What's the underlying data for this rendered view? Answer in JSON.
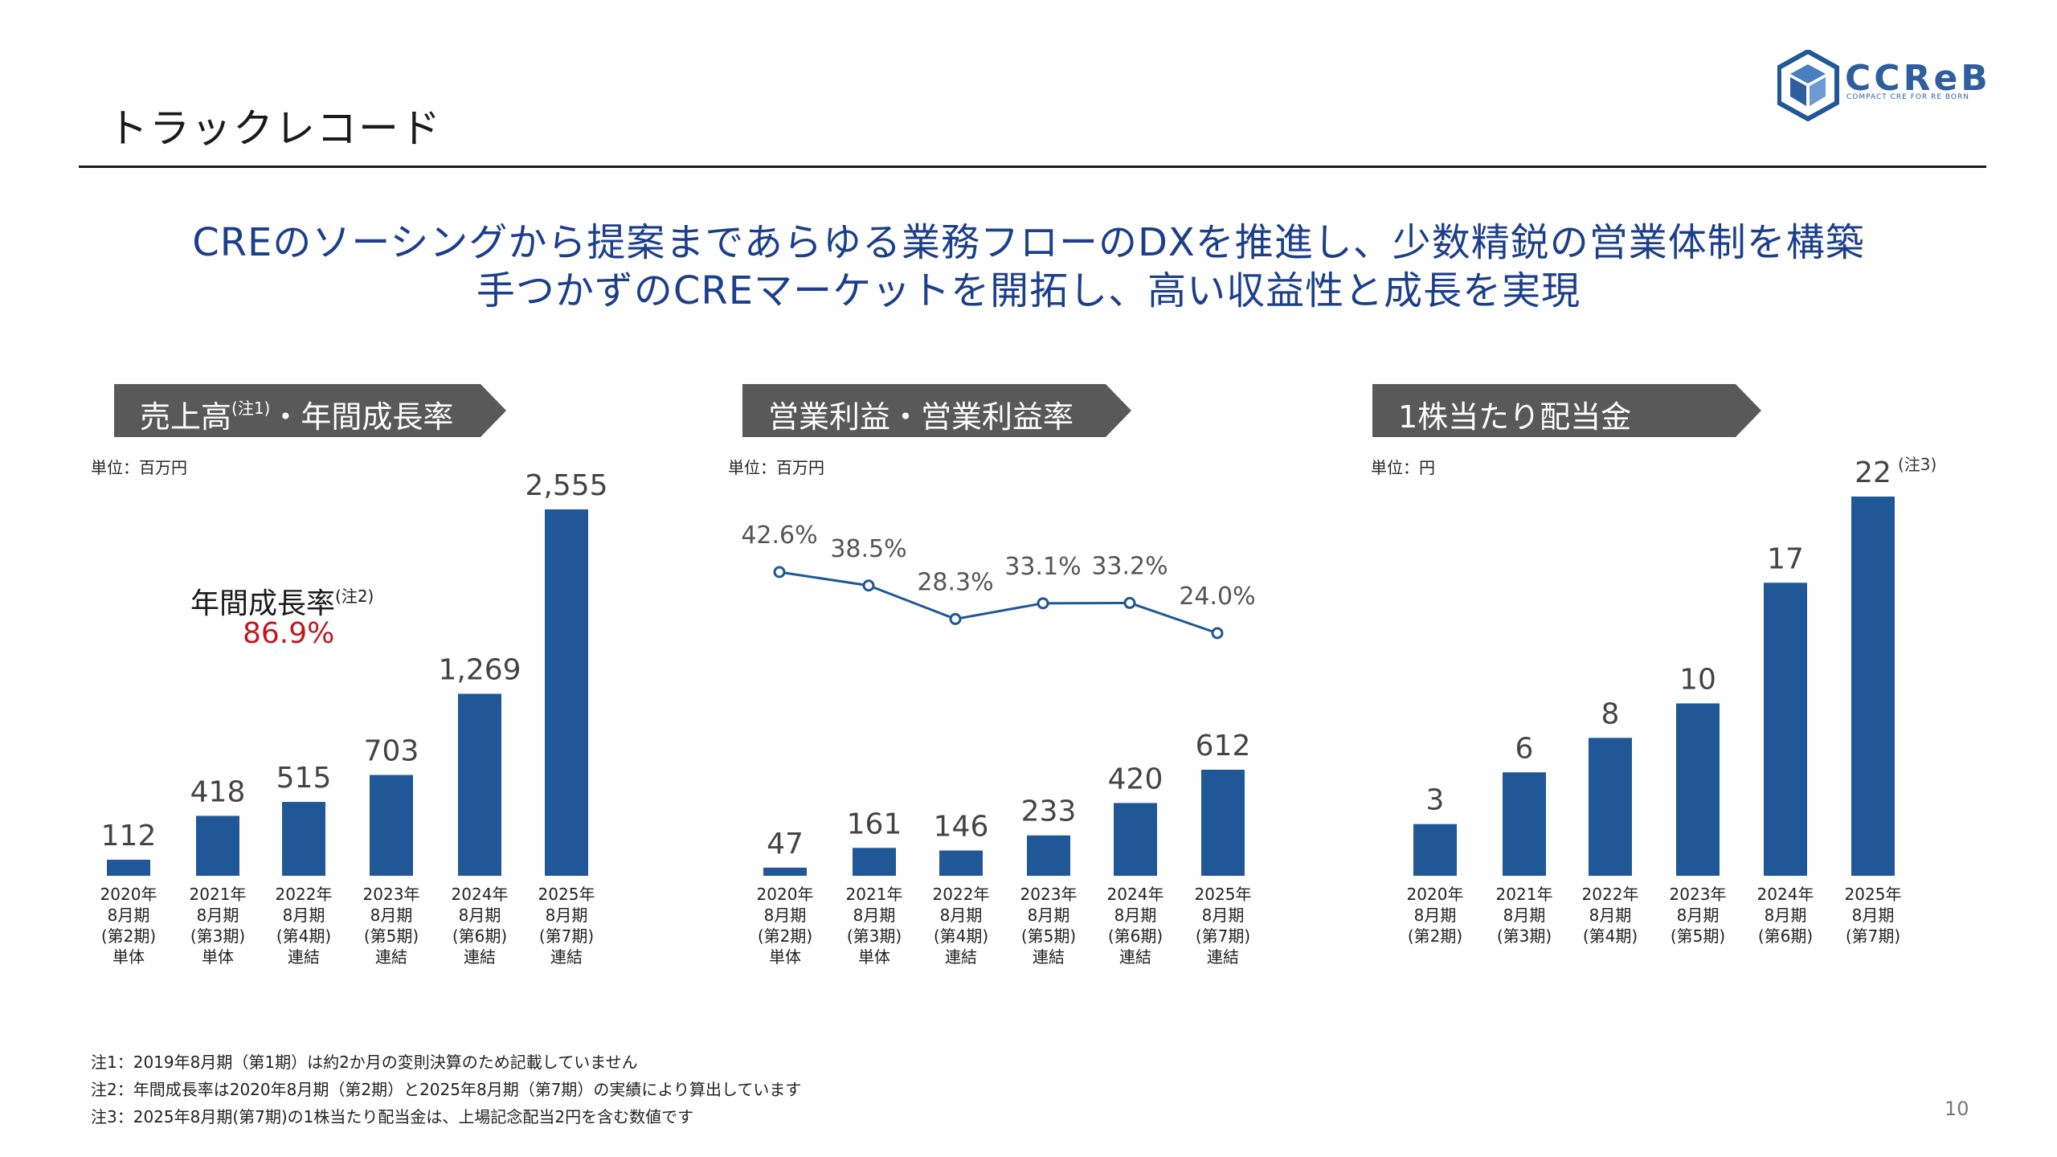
{
  "page": {
    "title": "トラックレコード",
    "page_number": "10",
    "headline_line1": "CREのソーシングから提案まであらゆる業務フローのDXを推進し、少数精鋭の営業体制を構築",
    "headline_line2": "手つかずのCREマーケットを開拓し、高い収益性と成長を実現"
  },
  "logo": {
    "text": "CCReB",
    "tagline": "COMPACT CRE FOR RE BORN"
  },
  "colors": {
    "bar": "#1f5797",
    "line": "#1f5797",
    "banner": "#595959",
    "headline": "#1c3f8c",
    "growth_value": "#c0181f"
  },
  "banners": {
    "revenue_main": "売上高",
    "revenue_note": "(注1)",
    "revenue_rest": "・年間成長率",
    "operating": "営業利益・営業利益率",
    "dividend": "1株当たり配当金"
  },
  "units": {
    "revenue": "単位：百万円",
    "operating": "単位：百万円",
    "dividend": "単位：円"
  },
  "growth": {
    "label": "年間成長率",
    "note": "(注2)",
    "value": "86.9%"
  },
  "dividend_note_mark": "(注3)",
  "chart_data": [
    {
      "type": "bar",
      "title": "売上高・年間成長率",
      "categories": [
        [
          "2020年",
          "8月期",
          "(第2期)",
          "単体"
        ],
        [
          "2021年",
          "8月期",
          "(第3期)",
          "単体"
        ],
        [
          "2022年",
          "8月期",
          "(第4期)",
          "連結"
        ],
        [
          "2023年",
          "8月期",
          "(第5期)",
          "連結"
        ],
        [
          "2024年",
          "8月期",
          "(第6期)",
          "連結"
        ],
        [
          "2025年",
          "8月期",
          "(第7期)",
          "連結"
        ]
      ],
      "values": [
        112,
        418,
        515,
        703,
        1269,
        2555
      ],
      "value_labels": [
        "112",
        "418",
        "515",
        "703",
        "1,269",
        "2,555"
      ],
      "ylim": [
        0,
        2555
      ]
    },
    {
      "type": "bar",
      "title": "営業利益・営業利益率",
      "categories": [
        [
          "2020年",
          "8月期",
          "(第2期)",
          "単体"
        ],
        [
          "2021年",
          "8月期",
          "(第3期)",
          "単体"
        ],
        [
          "2022年",
          "8月期",
          "(第4期)",
          "連結"
        ],
        [
          "2023年",
          "8月期",
          "(第5期)",
          "連結"
        ],
        [
          "2024年",
          "8月期",
          "(第6期)",
          "連結"
        ],
        [
          "2025年",
          "8月期",
          "(第7期)",
          "連結"
        ]
      ],
      "values": [
        47,
        161,
        146,
        233,
        420,
        612
      ],
      "value_labels": [
        "47",
        "161",
        "146",
        "233",
        "420",
        "612"
      ],
      "ylim": [
        0,
        612
      ],
      "line_values": [
        42.6,
        38.5,
        28.3,
        33.1,
        33.2,
        24.0
      ],
      "line_labels": [
        "42.6%",
        "38.5%",
        "28.3%",
        "33.1%",
        "33.2%",
        "24.0%"
      ]
    },
    {
      "type": "bar",
      "title": "1株当たり配当金",
      "categories": [
        [
          "2020年",
          "8月期",
          "(第2期)"
        ],
        [
          "2021年",
          "8月期",
          "(第3期)"
        ],
        [
          "2022年",
          "8月期",
          "(第4期)"
        ],
        [
          "2023年",
          "8月期",
          "(第5期)"
        ],
        [
          "2024年",
          "8月期",
          "(第6期)"
        ],
        [
          "2025年",
          "8月期",
          "(第7期)"
        ]
      ],
      "values": [
        3,
        6,
        8,
        10,
        17,
        22
      ],
      "value_labels": [
        "3",
        "6",
        "8",
        "10",
        "17",
        "22"
      ],
      "ylim": [
        0,
        22
      ]
    }
  ],
  "footnotes": {
    "note1": "注1：2019年8月期（第1期）は約2か月の変則決算のため記載していません",
    "note2": "注2：年間成長率は2020年8月期（第2期）と2025年8月期（第7期）の実績により算出しています",
    "note3": "注3：2025年8月期(第7期)の1株当たり配当金は、上場記念配当2円を含む数値です"
  }
}
